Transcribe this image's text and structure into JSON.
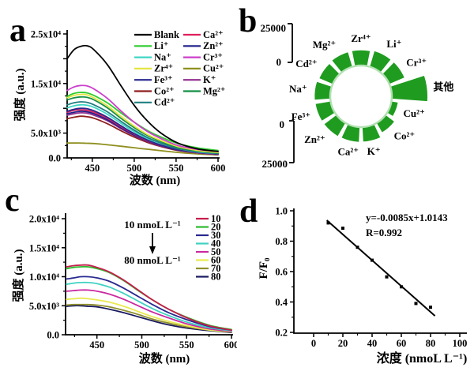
{
  "figure": {
    "letters": [
      "a",
      "b",
      "c",
      "d"
    ],
    "background": "#ffffff"
  },
  "chart_data": [
    {
      "panel": "a",
      "type": "line",
      "title": "",
      "xlabel": "波数 (nm)",
      "ylabel": "强度 (a.u.)",
      "xlim": [
        420,
        600
      ],
      "ylim": [
        0,
        25000
      ],
      "xticks": [
        450,
        500,
        550,
        600
      ],
      "xminor": [
        425,
        475,
        525,
        575
      ],
      "yticks": [
        {
          "v": 0,
          "label": "0.0"
        },
        {
          "v": 5000,
          "label": "5.0x10³"
        },
        {
          "v": 10000,
          "label": ""
        },
        {
          "v": 15000,
          "label": "1.5x10⁴"
        },
        {
          "v": 20000,
          "label": ""
        },
        {
          "v": 25000,
          "label": "2.5x10⁴"
        }
      ],
      "yminor": [
        2500,
        7500,
        12500,
        17500,
        22500
      ],
      "legend_position": "top-right-two-columns",
      "x": [
        420,
        428,
        436,
        444,
        452,
        468,
        484,
        500,
        516,
        532,
        552,
        576,
        600
      ],
      "series": [
        {
          "name": "Cu²⁺",
          "color": "#8f8f1f",
          "col": 1,
          "row": 3,
          "values": [
            3000,
            3000,
            3000,
            2950,
            2900,
            2650,
            2350,
            2050,
            1750,
            1450,
            1100,
            800,
            600
          ]
        },
        {
          "name": "Co²⁺",
          "color": "#8f1f1f",
          "col": 0,
          "row": 5,
          "values": [
            7900,
            8200,
            8400,
            8300,
            8000,
            6900,
            5500,
            4200,
            3100,
            2300,
            1500,
            1000,
            700
          ]
        },
        {
          "name": "K⁺",
          "color": "#8f2f8f",
          "col": 1,
          "row": 4,
          "values": [
            8600,
            8900,
            9100,
            9000,
            8600,
            7500,
            5900,
            4500,
            3300,
            2400,
            1600,
            1000,
            700
          ]
        },
        {
          "name": "Zn²⁺",
          "color": "#1f1f8a",
          "col": 1,
          "row": 1,
          "values": [
            8900,
            9200,
            9400,
            9300,
            8900,
            7700,
            6100,
            4600,
            3400,
            2500,
            1600,
            1100,
            800
          ]
        },
        {
          "name": "Ca²⁺",
          "color": "#e01f5a",
          "col": 1,
          "row": 0,
          "values": [
            9200,
            9600,
            9700,
            9600,
            9200,
            8000,
            6300,
            4800,
            3500,
            2600,
            1700,
            1100,
            800
          ]
        },
        {
          "name": "Fe³⁺",
          "color": "#28288f",
          "col": 0,
          "row": 4,
          "values": [
            9400,
            9800,
            10000,
            9900,
            9500,
            8200,
            6500,
            4900,
            3600,
            2600,
            1700,
            1100,
            800
          ]
        },
        {
          "name": "Na⁺",
          "color": "#3fd6c6",
          "col": 0,
          "row": 2,
          "values": [
            10100,
            10500,
            10700,
            10600,
            10200,
            8800,
            7000,
            5300,
            3900,
            2900,
            1900,
            1200,
            900
          ]
        },
        {
          "name": "Cd²⁺",
          "color": "#217f7f",
          "col": 0,
          "row": 6,
          "values": [
            10700,
            11100,
            11300,
            11200,
            10700,
            9300,
            7400,
            5600,
            4100,
            3000,
            1900,
            1300,
            900
          ]
        },
        {
          "name": "Mg²⁺",
          "color": "#159045",
          "col": 1,
          "row": 5,
          "values": [
            11700,
            12100,
            12300,
            12200,
            11700,
            10100,
            8000,
            6100,
            4500,
            3300,
            2100,
            1400,
            1000
          ]
        },
        {
          "name": "Zr⁴⁺",
          "color": "#e5e542",
          "col": 0,
          "row": 3,
          "values": [
            12100,
            12600,
            12800,
            12700,
            12100,
            10500,
            8400,
            6400,
            4700,
            3500,
            2300,
            1500,
            1100
          ]
        },
        {
          "name": "Li⁺",
          "color": "#2ecc2e",
          "col": 0,
          "row": 1,
          "values": [
            12400,
            13000,
            13200,
            13100,
            12600,
            11100,
            9100,
            7200,
            5500,
            4200,
            2900,
            2000,
            1500
          ]
        },
        {
          "name": "Cr³⁺",
          "color": "#cc3fcc",
          "col": 1,
          "row": 2,
          "values": [
            13600,
            14300,
            14600,
            14500,
            13900,
            12000,
            9500,
            7200,
            5300,
            3900,
            2500,
            1700,
            1300
          ]
        },
        {
          "name": "Blank",
          "color": "#000000",
          "col": 0,
          "row": 0,
          "values": [
            20000,
            21800,
            22500,
            22600,
            21800,
            18800,
            14600,
            10600,
            7400,
            5000,
            3000,
            1800,
            1300
          ]
        }
      ]
    },
    {
      "panel": "b",
      "type": "radial-bar",
      "color": "#1f9c1f",
      "ring_edge": "#b2e0b2",
      "scale_max": 25000,
      "axis_top": {
        "outer_label": "25000",
        "inner_label": "0"
      },
      "axis_bottom": {
        "inner_label": "0",
        "outer_label": "25000"
      },
      "items": [
        {
          "name": "Zr⁴⁺",
          "value": 22000
        },
        {
          "name": "Li⁺",
          "value": 23500
        },
        {
          "name": "Cr³⁺",
          "value": 23500
        },
        {
          "name": "其他",
          "value": 50000
        },
        {
          "name": "Cu²⁺",
          "value": 10000
        },
        {
          "name": "Co²⁺",
          "value": 16000
        },
        {
          "name": "K⁺",
          "value": 21000
        },
        {
          "name": "Ca²⁺",
          "value": 21500
        },
        {
          "name": "Zn²⁺",
          "value": 22000
        },
        {
          "name": "Fe³⁺",
          "value": 22000
        },
        {
          "name": "Na⁺",
          "value": 22500
        },
        {
          "name": "Cd²⁺",
          "value": 21000
        },
        {
          "name": "Mg²⁺",
          "value": 22000
        }
      ]
    },
    {
      "panel": "c",
      "type": "line",
      "title": "",
      "xlabel": "波数 (nm)",
      "ylabel": "强度 (a.u.)",
      "xlim": [
        415,
        600
      ],
      "ylim": [
        0,
        20000
      ],
      "xticks": [
        450,
        500,
        550,
        600
      ],
      "xminor": [
        425,
        475,
        525,
        575
      ],
      "yticks": [
        {
          "v": 0,
          "label": "0.0"
        },
        {
          "v": 5000,
          "label": "5.0x10³"
        },
        {
          "v": 10000,
          "label": "1.0x10⁴"
        },
        {
          "v": 15000,
          "label": "1.5x10⁴"
        },
        {
          "v": 20000,
          "label": "2.0x10⁴"
        }
      ],
      "yminor": [
        2500,
        7500,
        12500,
        17500
      ],
      "legend_position": "right",
      "annotation": {
        "from": "10 nmoL L⁻¹",
        "to": "80 nmoL L⁻¹"
      },
      "x": [
        416,
        424,
        432,
        440,
        450,
        464,
        480,
        496,
        512,
        530,
        552,
        576,
        600
      ],
      "series": [
        {
          "name": "80",
          "color": "#191960",
          "row": 7,
          "values": [
            4900,
            5000,
            5000,
            4900,
            4800,
            4400,
            3800,
            3100,
            2400,
            1700,
            1100,
            700,
            400
          ]
        },
        {
          "name": "70",
          "color": "#8f8f2d",
          "row": 6,
          "values": [
            5100,
            5200,
            5200,
            5200,
            5100,
            4800,
            4200,
            3500,
            2700,
            2000,
            1300,
            800,
            500
          ]
        },
        {
          "name": "60",
          "color": "#e9e94f",
          "row": 5,
          "values": [
            6100,
            6200,
            6300,
            6200,
            6000,
            5600,
            4900,
            4000,
            3100,
            2300,
            1500,
            800,
            500
          ]
        },
        {
          "name": "50",
          "color": "#ca28a0",
          "row": 4,
          "values": [
            7500,
            7600,
            7700,
            7700,
            7500,
            7000,
            6100,
            5000,
            3900,
            2900,
            1800,
            1000,
            600
          ]
        },
        {
          "name": "40",
          "color": "#3ed2c2",
          "row": 3,
          "values": [
            8700,
            8900,
            9000,
            9000,
            8800,
            8200,
            7100,
            5800,
            4500,
            3300,
            2100,
            1200,
            700
          ]
        },
        {
          "name": "30",
          "color": "#28288f",
          "row": 2,
          "values": [
            9600,
            9800,
            10000,
            10000,
            9800,
            9200,
            8000,
            6600,
            5200,
            3800,
            2500,
            1400,
            800
          ]
        },
        {
          "name": "20",
          "color": "#2db92d",
          "row": 1,
          "values": [
            11400,
            11600,
            11700,
            11700,
            11400,
            10700,
            9300,
            7600,
            6000,
            4400,
            2900,
            1600,
            900
          ]
        },
        {
          "name": "10",
          "color": "#c41e4b",
          "row": 0,
          "values": [
            11700,
            11900,
            12000,
            12000,
            11600,
            10800,
            9400,
            7700,
            6000,
            4400,
            2800,
            1500,
            800
          ]
        }
      ]
    },
    {
      "panel": "d",
      "type": "scatter",
      "xlabel": "浓度 (nmoL L⁻¹)",
      "ylabel": "F/F₀",
      "xlim": [
        -13,
        105
      ],
      "ylim": [
        0.19,
        1.02
      ],
      "xticks": [
        0,
        20,
        40,
        60,
        80,
        100
      ],
      "xminor": [
        10,
        30,
        50,
        70,
        90
      ],
      "yticks": [
        0.2,
        0.4,
        0.6,
        0.8,
        1.0
      ],
      "yminor": [
        0.3,
        0.5,
        0.7,
        0.9
      ],
      "points": [
        [
          10,
          0.92
        ],
        [
          20,
          0.885
        ],
        [
          30,
          0.76
        ],
        [
          40,
          0.675
        ],
        [
          50,
          0.565
        ],
        [
          60,
          0.5
        ],
        [
          70,
          0.39
        ],
        [
          80,
          0.365
        ]
      ],
      "fit": {
        "slope": -0.0085,
        "intercept": 1.0143,
        "x_start": 9,
        "x_end": 83
      },
      "equation": "y=-0.0085x+1.0143",
      "r_value": "R=0.992",
      "marker": "square",
      "marker_color": "#000000"
    }
  ]
}
